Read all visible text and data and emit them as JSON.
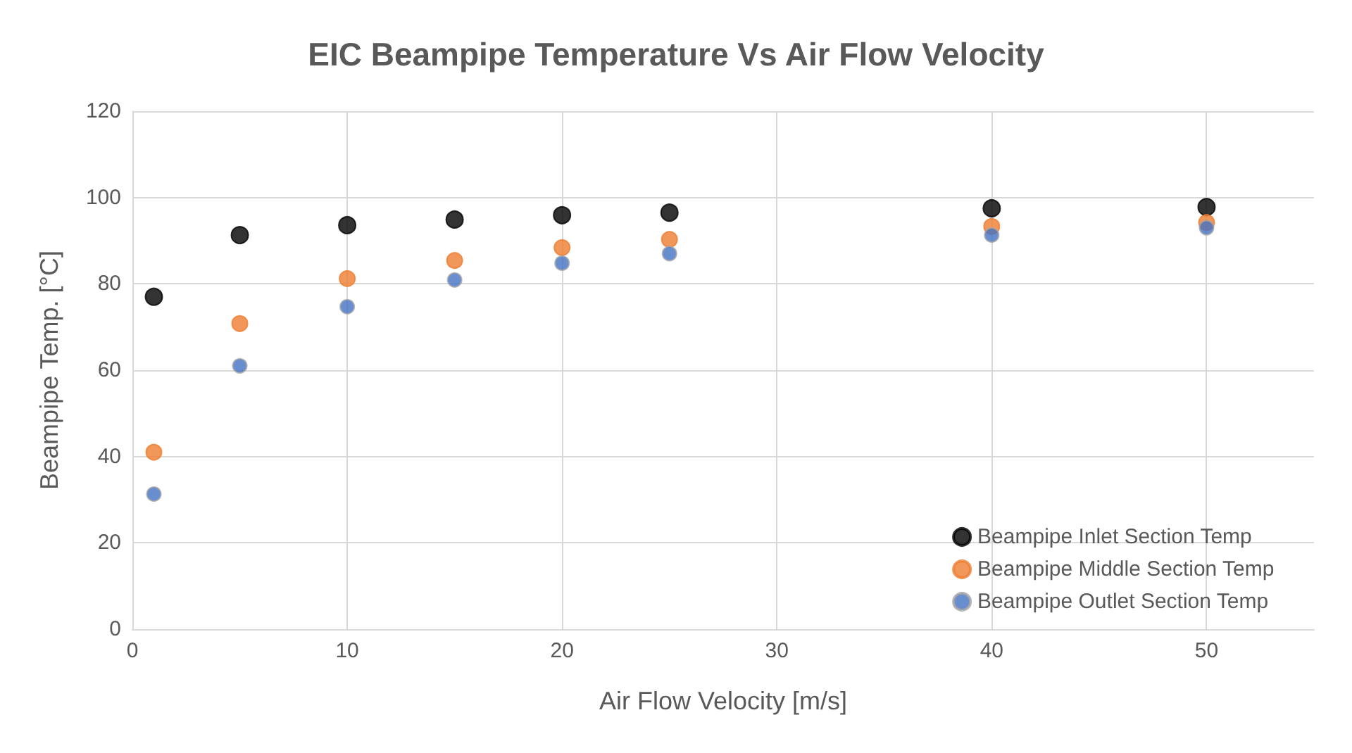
{
  "chart_data": {
    "type": "scatter",
    "title": "EIC Beampipe Temperature Vs Air Flow Velocity",
    "xlabel": "Air Flow Velocity [m/s]",
    "ylabel": "Beampipe Temp. [°C]",
    "x": [
      1,
      5,
      10,
      15,
      20,
      25,
      40,
      50
    ],
    "series": [
      {
        "name": "Beampipe Inlet Section Temp",
        "color": "#000000",
        "values": [
          77,
          91.3,
          93.6,
          94.9,
          95.9,
          96.5,
          97.5,
          97.8
        ]
      },
      {
        "name": "Beampipe Middle Section Temp",
        "color": "#ed7d31",
        "values": [
          41,
          70.8,
          81.2,
          85.4,
          88.4,
          90.3,
          93.3,
          94.2
        ]
      },
      {
        "name": "Beampipe Outlet Section Temp",
        "color": "#4472c4",
        "values": [
          31.3,
          61,
          74.7,
          80.9,
          84.8,
          87,
          91.3,
          93
        ]
      }
    ],
    "xlim": [
      0,
      55
    ],
    "xticks": [
      0,
      10,
      20,
      30,
      40,
      50
    ],
    "ylim": [
      0,
      120
    ],
    "yticks": [
      0,
      20,
      40,
      60,
      80,
      100,
      120
    ],
    "grid": true,
    "legend": "bottom right",
    "marker": "circle"
  }
}
